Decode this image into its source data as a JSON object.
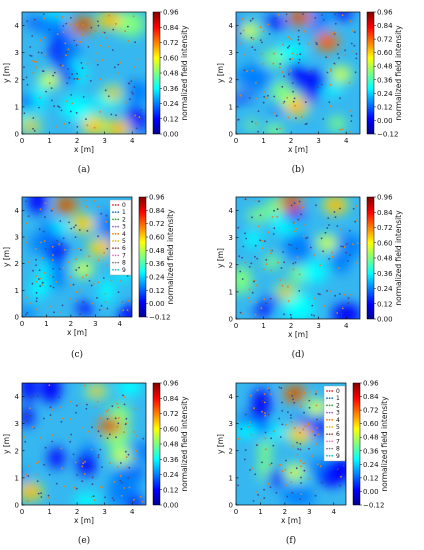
{
  "colors": {
    "colormap": [
      "#00008f",
      "#0000ff",
      "#007fff",
      "#00ffff",
      "#7fff7f",
      "#ffff00",
      "#ff7f00",
      "#ff0000",
      "#7f0000"
    ],
    "points": [
      "#3b4b8c",
      "#d9822b"
    ]
  },
  "shared": {
    "xlabel": "x [m]",
    "ylabel": "y [m]",
    "colorbar_label": "normalized field intensity",
    "x_ticks": [
      "0",
      "1",
      "2",
      "3",
      "4"
    ],
    "y_ticks": [
      "0",
      "1",
      "2",
      "3",
      "4"
    ]
  },
  "chart_data": [
    {
      "type": "heatmap",
      "caption": "(a)",
      "xlim": [
        0,
        4.5
      ],
      "ylim": [
        0,
        4.5
      ],
      "colorbar_ticks": [
        "0.00",
        "0.12",
        "0.24",
        "0.36",
        "0.48",
        "0.60",
        "0.72",
        "0.84",
        "0.96"
      ],
      "colorbar_range": [
        0,
        0.96
      ],
      "legend": [],
      "hotspots": [
        {
          "x": 2.2,
          "y": 4.0,
          "value": 0.9
        },
        {
          "x": 3.2,
          "y": 4.2,
          "value": 0.8
        },
        {
          "x": 0.3,
          "y": 0.3,
          "value": 0.7
        },
        {
          "x": 2.6,
          "y": 0.3,
          "value": 0.75
        },
        {
          "x": 3.5,
          "y": 0.2,
          "value": 0.8
        },
        {
          "x": 3.3,
          "y": 1.5,
          "value": 0.7
        },
        {
          "x": 1.0,
          "y": 2.0,
          "value": 0.6
        }
      ]
    },
    {
      "type": "heatmap",
      "caption": "(b)",
      "xlim": [
        0,
        4.5
      ],
      "ylim": [
        0,
        4.5
      ],
      "colorbar_ticks": [
        "−0.12",
        "0.00",
        "0.12",
        "0.24",
        "0.36",
        "0.48",
        "0.60",
        "0.72",
        "0.84",
        "0.96"
      ],
      "colorbar_range": [
        -0.12,
        0.96
      ],
      "legend": [],
      "hotspots": [
        {
          "x": 2.3,
          "y": 4.3,
          "value": 0.95
        },
        {
          "x": 3.3,
          "y": 3.4,
          "value": 0.85
        },
        {
          "x": 2.2,
          "y": 1.0,
          "value": 0.8
        },
        {
          "x": 3.8,
          "y": 2.2,
          "value": 0.6
        },
        {
          "x": 0.5,
          "y": 3.8,
          "value": 0.55
        }
      ]
    },
    {
      "type": "heatmap",
      "caption": "(c)",
      "xlim": [
        0,
        4.5
      ],
      "ylim": [
        0,
        4.5
      ],
      "colorbar_ticks": [
        "−0.12",
        "0.00",
        "0.12",
        "0.24",
        "0.36",
        "0.48",
        "0.60",
        "0.72",
        "0.84",
        "0.96"
      ],
      "colorbar_range": [
        -0.12,
        0.96
      ],
      "legend": [
        "0",
        "1",
        "2",
        "3",
        "4",
        "5",
        "6",
        "7",
        "8",
        "9"
      ],
      "hotspots": [
        {
          "x": 1.8,
          "y": 4.2,
          "value": 0.95
        },
        {
          "x": 2.5,
          "y": 3.5,
          "value": 0.75
        },
        {
          "x": 3.2,
          "y": 2.6,
          "value": 0.7
        },
        {
          "x": 2.5,
          "y": 1.8,
          "value": 0.6
        }
      ]
    },
    {
      "type": "heatmap",
      "caption": "(d)",
      "xlim": [
        0,
        4.5
      ],
      "ylim": [
        0,
        4.5
      ],
      "colorbar_ticks": [
        "0.00",
        "0.12",
        "0.24",
        "0.36",
        "0.48",
        "0.60",
        "0.72",
        "0.84",
        "0.96"
      ],
      "colorbar_range": [
        0,
        0.96
      ],
      "legend": [],
      "hotspots": [
        {
          "x": 2.0,
          "y": 4.3,
          "value": 0.9
        },
        {
          "x": 3.6,
          "y": 4.2,
          "value": 0.85
        },
        {
          "x": 1.8,
          "y": 1.0,
          "value": 0.7
        },
        {
          "x": 3.3,
          "y": 2.8,
          "value": 0.65
        }
      ]
    },
    {
      "type": "heatmap",
      "caption": "(e)",
      "xlim": [
        0,
        4.5
      ],
      "ylim": [
        0,
        4.5
      ],
      "colorbar_ticks": [
        "0.00",
        "0.12",
        "0.24",
        "0.36",
        "0.48",
        "0.60",
        "0.72",
        "0.84",
        "0.96"
      ],
      "colorbar_range": [
        0,
        0.96
      ],
      "legend": [],
      "hotspots": [
        {
          "x": 3.2,
          "y": 2.9,
          "value": 0.9
        },
        {
          "x": 0.3,
          "y": 0.5,
          "value": 0.85
        },
        {
          "x": 2.7,
          "y": 4.2,
          "value": 0.7
        },
        {
          "x": 3.6,
          "y": 1.8,
          "value": 0.6
        }
      ]
    },
    {
      "type": "heatmap",
      "caption": "(f)",
      "xlim": [
        0,
        4.5
      ],
      "ylim": [
        0,
        4.5
      ],
      "colorbar_ticks": [
        "−0.12",
        "0.00",
        "0.12",
        "0.24",
        "0.36",
        "0.48",
        "0.60",
        "0.72",
        "0.84",
        "0.96"
      ],
      "colorbar_range": [
        -0.12,
        0.96
      ],
      "legend": [
        "0",
        "1",
        "2",
        "3",
        "4",
        "5",
        "6",
        "7",
        "8",
        "9"
      ],
      "hotspots": [
        {
          "x": 2.4,
          "y": 4.1,
          "value": 0.95
        },
        {
          "x": 2.6,
          "y": 2.6,
          "value": 0.7
        },
        {
          "x": 3.3,
          "y": 3.6,
          "value": 0.6
        },
        {
          "x": 2.4,
          "y": 1.2,
          "value": 0.55
        }
      ]
    }
  ]
}
